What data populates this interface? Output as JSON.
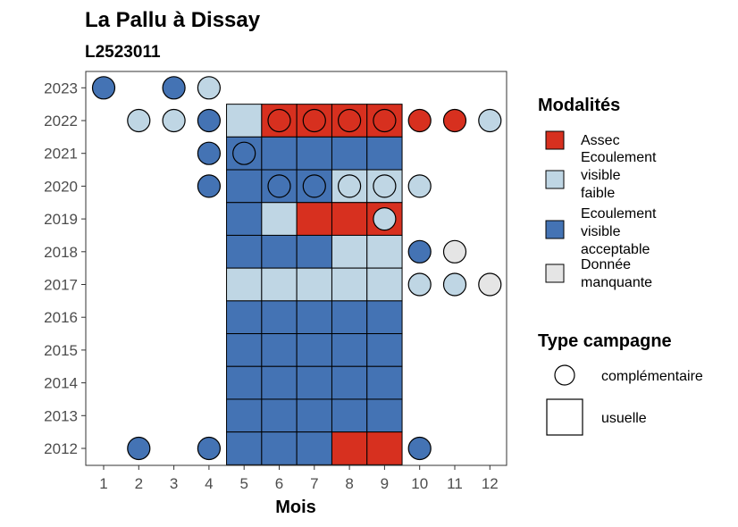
{
  "chart_data": {
    "type": "heatmap",
    "title": "La Pallu à Dissay",
    "subtitle": "L2523011",
    "xlabel": "Mois",
    "ylabel": "",
    "x_ticks": [
      "1",
      "2",
      "3",
      "4",
      "5",
      "6",
      "7",
      "8",
      "9",
      "10",
      "11",
      "12"
    ],
    "y_ticks": [
      "2012",
      "2013",
      "2014",
      "2015",
      "2016",
      "2017",
      "2018",
      "2019",
      "2020",
      "2021",
      "2022",
      "2023"
    ],
    "categories": {
      "assec": {
        "label": "Assec",
        "color": "#d7301f"
      },
      "faible": {
        "label": "Ecoulement visible faible",
        "color": "#bfd6e4"
      },
      "acceptable": {
        "label": "Ecoulement visible acceptable",
        "color": "#4473b4"
      },
      "manquante": {
        "label": "Donnée manquante",
        "color": "#e5e5e5"
      }
    },
    "legend_modalites": {
      "title": "Modalités",
      "items": [
        {
          "key": "assec",
          "lines": [
            "Assec"
          ]
        },
        {
          "key": "faible",
          "lines": [
            "Ecoulement",
            "visible",
            "faible"
          ]
        },
        {
          "key": "acceptable",
          "lines": [
            "Ecoulement",
            "visible",
            "acceptable"
          ]
        },
        {
          "key": "manquante",
          "lines": [
            "Donnée",
            "manquante"
          ]
        }
      ]
    },
    "legend_campagne": {
      "title": "Type campagne",
      "items": [
        {
          "shape": "circle",
          "label": "complémentaire"
        },
        {
          "shape": "square",
          "label": "usuelle"
        }
      ]
    },
    "usuelle": [
      {
        "year": 2022,
        "month": 5,
        "value": "faible"
      },
      {
        "year": 2022,
        "month": 6,
        "value": "assec"
      },
      {
        "year": 2022,
        "month": 7,
        "value": "assec"
      },
      {
        "year": 2022,
        "month": 8,
        "value": "assec"
      },
      {
        "year": 2022,
        "month": 9,
        "value": "assec"
      },
      {
        "year": 2021,
        "month": 5,
        "value": "acceptable"
      },
      {
        "year": 2021,
        "month": 6,
        "value": "acceptable"
      },
      {
        "year": 2021,
        "month": 7,
        "value": "acceptable"
      },
      {
        "year": 2021,
        "month": 8,
        "value": "acceptable"
      },
      {
        "year": 2021,
        "month": 9,
        "value": "acceptable"
      },
      {
        "year": 2020,
        "month": 5,
        "value": "acceptable"
      },
      {
        "year": 2020,
        "month": 6,
        "value": "acceptable"
      },
      {
        "year": 2020,
        "month": 7,
        "value": "acceptable"
      },
      {
        "year": 2020,
        "month": 8,
        "value": "faible"
      },
      {
        "year": 2020,
        "month": 9,
        "value": "faible"
      },
      {
        "year": 2019,
        "month": 5,
        "value": "acceptable"
      },
      {
        "year": 2019,
        "month": 6,
        "value": "faible"
      },
      {
        "year": 2019,
        "month": 7,
        "value": "assec"
      },
      {
        "year": 2019,
        "month": 8,
        "value": "assec"
      },
      {
        "year": 2019,
        "month": 9,
        "value": "assec"
      },
      {
        "year": 2018,
        "month": 5,
        "value": "acceptable"
      },
      {
        "year": 2018,
        "month": 6,
        "value": "acceptable"
      },
      {
        "year": 2018,
        "month": 7,
        "value": "acceptable"
      },
      {
        "year": 2018,
        "month": 8,
        "value": "faible"
      },
      {
        "year": 2018,
        "month": 9,
        "value": "faible"
      },
      {
        "year": 2017,
        "month": 5,
        "value": "faible"
      },
      {
        "year": 2017,
        "month": 6,
        "value": "faible"
      },
      {
        "year": 2017,
        "month": 7,
        "value": "faible"
      },
      {
        "year": 2017,
        "month": 8,
        "value": "faible"
      },
      {
        "year": 2017,
        "month": 9,
        "value": "faible"
      },
      {
        "year": 2016,
        "month": 5,
        "value": "acceptable"
      },
      {
        "year": 2016,
        "month": 6,
        "value": "acceptable"
      },
      {
        "year": 2016,
        "month": 7,
        "value": "acceptable"
      },
      {
        "year": 2016,
        "month": 8,
        "value": "acceptable"
      },
      {
        "year": 2016,
        "month": 9,
        "value": "acceptable"
      },
      {
        "year": 2015,
        "month": 5,
        "value": "acceptable"
      },
      {
        "year": 2015,
        "month": 6,
        "value": "acceptable"
      },
      {
        "year": 2015,
        "month": 7,
        "value": "acceptable"
      },
      {
        "year": 2015,
        "month": 8,
        "value": "acceptable"
      },
      {
        "year": 2015,
        "month": 9,
        "value": "acceptable"
      },
      {
        "year": 2014,
        "month": 5,
        "value": "acceptable"
      },
      {
        "year": 2014,
        "month": 6,
        "value": "acceptable"
      },
      {
        "year": 2014,
        "month": 7,
        "value": "acceptable"
      },
      {
        "year": 2014,
        "month": 8,
        "value": "acceptable"
      },
      {
        "year": 2014,
        "month": 9,
        "value": "acceptable"
      },
      {
        "year": 2013,
        "month": 5,
        "value": "acceptable"
      },
      {
        "year": 2013,
        "month": 6,
        "value": "acceptable"
      },
      {
        "year": 2013,
        "month": 7,
        "value": "acceptable"
      },
      {
        "year": 2013,
        "month": 8,
        "value": "acceptable"
      },
      {
        "year": 2013,
        "month": 9,
        "value": "acceptable"
      },
      {
        "year": 2012,
        "month": 5,
        "value": "acceptable"
      },
      {
        "year": 2012,
        "month": 6,
        "value": "acceptable"
      },
      {
        "year": 2012,
        "month": 7,
        "value": "acceptable"
      },
      {
        "year": 2012,
        "month": 8,
        "value": "assec"
      },
      {
        "year": 2012,
        "month": 9,
        "value": "assec"
      }
    ],
    "complementaire": [
      {
        "year": 2023,
        "month": 1,
        "value": "acceptable"
      },
      {
        "year": 2023,
        "month": 3,
        "value": "acceptable"
      },
      {
        "year": 2023,
        "month": 4,
        "value": "faible"
      },
      {
        "year": 2022,
        "month": 2,
        "value": "faible"
      },
      {
        "year": 2022,
        "month": 3,
        "value": "faible"
      },
      {
        "year": 2022,
        "month": 4,
        "value": "acceptable"
      },
      {
        "year": 2022,
        "month": 6,
        "value": "assec"
      },
      {
        "year": 2022,
        "month": 7,
        "value": "assec"
      },
      {
        "year": 2022,
        "month": 8,
        "value": "assec"
      },
      {
        "year": 2022,
        "month": 9,
        "value": "assec"
      },
      {
        "year": 2022,
        "month": 10,
        "value": "assec"
      },
      {
        "year": 2022,
        "month": 11,
        "value": "assec"
      },
      {
        "year": 2022,
        "month": 12,
        "value": "faible"
      },
      {
        "year": 2021,
        "month": 4,
        "value": "acceptable"
      },
      {
        "year": 2021,
        "month": 5,
        "value": "acceptable"
      },
      {
        "year": 2020,
        "month": 4,
        "value": "acceptable"
      },
      {
        "year": 2020,
        "month": 6,
        "value": "acceptable"
      },
      {
        "year": 2020,
        "month": 7,
        "value": "acceptable"
      },
      {
        "year": 2020,
        "month": 8,
        "value": "faible"
      },
      {
        "year": 2020,
        "month": 9,
        "value": "faible"
      },
      {
        "year": 2020,
        "month": 10,
        "value": "faible"
      },
      {
        "year": 2019,
        "month": 9,
        "value": "faible"
      },
      {
        "year": 2018,
        "month": 10,
        "value": "acceptable"
      },
      {
        "year": 2018,
        "month": 11,
        "value": "manquante"
      },
      {
        "year": 2017,
        "month": 10,
        "value": "faible"
      },
      {
        "year": 2017,
        "month": 11,
        "value": "faible"
      },
      {
        "year": 2017,
        "month": 12,
        "value": "manquante"
      },
      {
        "year": 2012,
        "month": 2,
        "value": "acceptable"
      },
      {
        "year": 2012,
        "month": 4,
        "value": "acceptable"
      },
      {
        "year": 2012,
        "month": 10,
        "value": "acceptable"
      }
    ]
  }
}
